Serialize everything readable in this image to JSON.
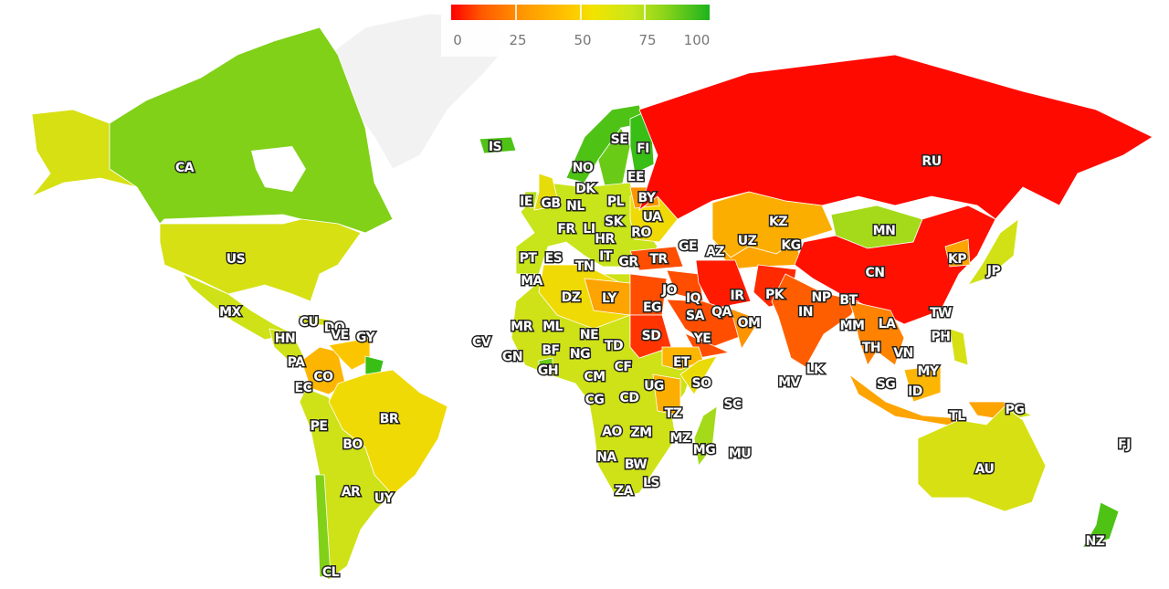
{
  "legend": {
    "ticks": [
      "0",
      "25",
      "50",
      "75",
      "100"
    ],
    "range": [
      0,
      100
    ],
    "colors": {
      "low": "#ff0000",
      "mid": "#ffd700",
      "high": "#1db41d",
      "no_data": "#f2f2f2"
    }
  },
  "countries": [
    {
      "code": "CA",
      "value": 85
    },
    {
      "code": "US",
      "value": 68
    },
    {
      "code": "MX",
      "value": 72
    },
    {
      "code": "CU",
      "value": 70
    },
    {
      "code": "DO",
      "value": 72
    },
    {
      "code": "HN",
      "value": 72
    },
    {
      "code": "PA",
      "value": 72
    },
    {
      "code": "VE",
      "value": 45
    },
    {
      "code": "GY",
      "value": 95
    },
    {
      "code": "CO",
      "value": 40
    },
    {
      "code": "EC",
      "value": 72
    },
    {
      "code": "PE",
      "value": 72
    },
    {
      "code": "BR",
      "value": 55
    },
    {
      "code": "BO",
      "value": 75
    },
    {
      "code": "AR",
      "value": 78
    },
    {
      "code": "UY",
      "value": 75
    },
    {
      "code": "CL",
      "value": 85
    },
    {
      "code": "IS",
      "value": 92
    },
    {
      "code": "NO",
      "value": 92
    },
    {
      "code": "SE",
      "value": 88
    },
    {
      "code": "FI",
      "value": 95
    },
    {
      "code": "EE",
      "value": 85
    },
    {
      "code": "DK",
      "value": 85
    },
    {
      "code": "IE",
      "value": 78
    },
    {
      "code": "GB",
      "value": 60
    },
    {
      "code": "NL",
      "value": 75
    },
    {
      "code": "PL",
      "value": 80
    },
    {
      "code": "BY",
      "value": 30
    },
    {
      "code": "UA",
      "value": 55
    },
    {
      "code": "FR",
      "value": 75
    },
    {
      "code": "LI",
      "value": 78
    },
    {
      "code": "SK",
      "value": 80
    },
    {
      "code": "HR",
      "value": 78
    },
    {
      "code": "RO",
      "value": 75
    },
    {
      "code": "PT",
      "value": 75
    },
    {
      "code": "ES",
      "value": 75
    },
    {
      "code": "IT",
      "value": 75
    },
    {
      "code": "TN",
      "value": 62
    },
    {
      "code": "GR",
      "value": 75
    },
    {
      "code": "TR",
      "value": 15
    },
    {
      "code": "GE",
      "value": 28
    },
    {
      "code": "AZ",
      "value": 22
    },
    {
      "code": "RU",
      "value": 2
    },
    {
      "code": "KZ",
      "value": 38
    },
    {
      "code": "UZ",
      "value": 35
    },
    {
      "code": "KG",
      "value": 38
    },
    {
      "code": "MN",
      "value": 80
    },
    {
      "code": "CN",
      "value": 3
    },
    {
      "code": "KP",
      "value": 35
    },
    {
      "code": "JP",
      "value": 70
    },
    {
      "code": "MA",
      "value": 62
    },
    {
      "code": "DZ",
      "value": 55
    },
    {
      "code": "LY",
      "value": 35
    },
    {
      "code": "EG",
      "value": 15
    },
    {
      "code": "JO",
      "value": 25
    },
    {
      "code": "IQ",
      "value": 15
    },
    {
      "code": "IR",
      "value": 5
    },
    {
      "code": "SA",
      "value": 15
    },
    {
      "code": "QA",
      "value": 25
    },
    {
      "code": "OM",
      "value": 30
    },
    {
      "code": "PK",
      "value": 8
    },
    {
      "code": "NP",
      "value": 35
    },
    {
      "code": "BT",
      "value": 30
    },
    {
      "code": "IN",
      "value": 18
    },
    {
      "code": "MM",
      "value": 25
    },
    {
      "code": "LA",
      "value": 45
    },
    {
      "code": "TW",
      "value": 75
    },
    {
      "code": "PH",
      "value": 68
    },
    {
      "code": "TH",
      "value": 40
    },
    {
      "code": "VN",
      "value": 45
    },
    {
      "code": "MY",
      "value": 40
    },
    {
      "code": "SG",
      "value": 40
    },
    {
      "code": "ID",
      "value": 35
    },
    {
      "code": "TL",
      "value": 65
    },
    {
      "code": "PG",
      "value": 70
    },
    {
      "code": "LK",
      "value": 55
    },
    {
      "code": "MV",
      "value": 60
    },
    {
      "code": "CV",
      "value": 75
    },
    {
      "code": "MR",
      "value": 65
    },
    {
      "code": "ML",
      "value": 65
    },
    {
      "code": "NE",
      "value": 80
    },
    {
      "code": "GN",
      "value": 72
    },
    {
      "code": "BF",
      "value": 72
    },
    {
      "code": "NG",
      "value": 70
    },
    {
      "code": "GH",
      "value": 88
    },
    {
      "code": "TD",
      "value": 60
    },
    {
      "code": "SD",
      "value": 10
    },
    {
      "code": "YE",
      "value": 15
    },
    {
      "code": "ET",
      "value": 40
    },
    {
      "code": "CM",
      "value": 72
    },
    {
      "code": "CF",
      "value": 68
    },
    {
      "code": "UG",
      "value": 45
    },
    {
      "code": "SO",
      "value": 58
    },
    {
      "code": "SC",
      "value": 70
    },
    {
      "code": "CG",
      "value": 72
    },
    {
      "code": "CD",
      "value": 72
    },
    {
      "code": "TZ",
      "value": 38
    },
    {
      "code": "AO",
      "value": 70
    },
    {
      "code": "ZM",
      "value": 65
    },
    {
      "code": "MZ",
      "value": 62
    },
    {
      "code": "MG",
      "value": 80
    },
    {
      "code": "MU",
      "value": 75
    },
    {
      "code": "NA",
      "value": 78
    },
    {
      "code": "BW",
      "value": 72
    },
    {
      "code": "ZA",
      "value": 72
    },
    {
      "code": "LS",
      "value": 72
    },
    {
      "code": "AU",
      "value": 68
    },
    {
      "code": "NZ",
      "value": 92
    },
    {
      "code": "FJ",
      "value": 75
    }
  ]
}
